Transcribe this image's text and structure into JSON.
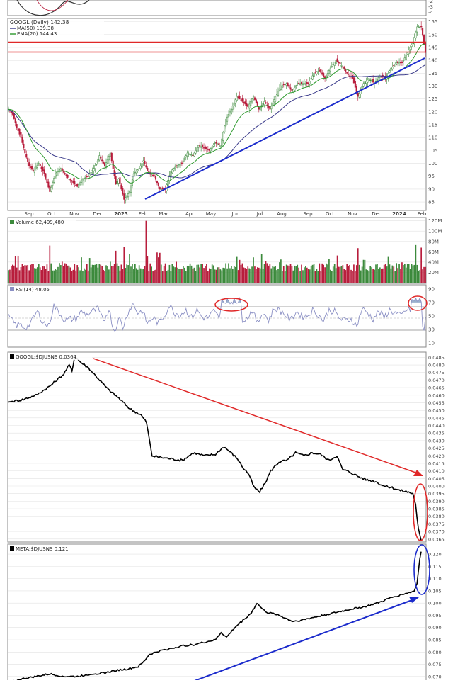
{
  "colors": {
    "up": "#3c8a3c",
    "down": "#b81d3c",
    "ma50": "#3a3a8a",
    "ema20": "#2e9a2e",
    "resistance": "#e02828",
    "trend_blue": "#1c2ccc",
    "grid": "#e2e2e2",
    "rsi_line": "#8a8fc4",
    "ratio_line": "#000000"
  },
  "chart_data": [
    {
      "type": "candlestick",
      "title": "GOOGL (Daily) 142.38",
      "legend": [
        {
          "name": "MA(50) 139.38"
        },
        {
          "name": "EMA(20) 144.43"
        }
      ],
      "yticks": [
        "155",
        "150",
        "145",
        "140",
        "135",
        "130",
        "125",
        "120",
        "115",
        "110",
        "105",
        "100",
        "95",
        "90",
        "85"
      ],
      "ylim": [
        82,
        156
      ],
      "xticks": [
        "Sep",
        "Oct",
        "Nov",
        "Dec",
        "2023",
        "Feb",
        "Mar",
        "Apr",
        "May",
        "Jun",
        "Jul",
        "Aug",
        "Sep",
        "Oct",
        "Nov",
        "Dec",
        "2024",
        "Feb"
      ],
      "top_strip_ticks": [
        "-2",
        "-3",
        "-4"
      ],
      "price_anchors": [
        [
          0,
          121
        ],
        [
          3,
          119
        ],
        [
          6,
          114
        ],
        [
          9,
          110
        ],
        [
          12,
          104
        ],
        [
          15,
          99
        ],
        [
          18,
          97
        ],
        [
          22,
          100
        ],
        [
          26,
          96
        ],
        [
          30,
          89
        ],
        [
          34,
          96
        ],
        [
          38,
          98
        ],
        [
          42,
          95
        ],
        [
          46,
          93
        ],
        [
          50,
          91
        ],
        [
          54,
          94
        ],
        [
          58,
          95
        ],
        [
          62,
          98
        ],
        [
          66,
          103
        ],
        [
          70,
          99
        ],
        [
          74,
          104
        ],
        [
          78,
          92
        ],
        [
          80,
          94
        ],
        [
          84,
          86
        ],
        [
          88,
          89
        ],
        [
          91,
          96
        ],
        [
          95,
          98
        ],
        [
          98,
          101
        ],
        [
          102,
          96
        ],
        [
          106,
          95
        ],
        [
          110,
          90
        ],
        [
          114,
          90
        ],
        [
          118,
          97
        ],
        [
          122,
          99
        ],
        [
          126,
          100
        ],
        [
          130,
          104
        ],
        [
          134,
          103
        ],
        [
          138,
          107
        ],
        [
          142,
          106
        ],
        [
          146,
          105
        ],
        [
          150,
          108
        ],
        [
          154,
          107
        ],
        [
          158,
          117
        ],
        [
          162,
          121
        ],
        [
          166,
          126
        ],
        [
          170,
          124
        ],
        [
          174,
          122
        ],
        [
          178,
          126
        ],
        [
          182,
          121
        ],
        [
          186,
          124
        ],
        [
          190,
          121
        ],
        [
          194,
          126
        ],
        [
          198,
          130
        ],
        [
          202,
          131
        ],
        [
          206,
          128
        ],
        [
          210,
          131
        ],
        [
          214,
          131
        ],
        [
          218,
          131
        ],
        [
          222,
          135
        ],
        [
          226,
          136
        ],
        [
          230,
          133
        ],
        [
          234,
          137
        ],
        [
          238,
          140
        ],
        [
          242,
          138
        ],
        [
          246,
          135
        ],
        [
          250,
          133
        ],
        [
          254,
          126
        ],
        [
          258,
          131
        ],
        [
          262,
          133
        ],
        [
          266,
          131
        ],
        [
          270,
          134
        ],
        [
          274,
          133
        ],
        [
          278,
          137
        ],
        [
          282,
          139
        ],
        [
          286,
          139
        ],
        [
          290,
          143
        ],
        [
          294,
          147
        ],
        [
          297,
          153
        ],
        [
          300,
          153
        ],
        [
          303,
          143
        ]
      ],
      "volume_panel": {
        "title": "Volume 62,499,480",
        "yticks": [
          "120M",
          "100M",
          "80M",
          "60M",
          "40M",
          "20M"
        ],
        "ylim": [
          0,
          125
        ]
      },
      "rsi_panel": {
        "title": "RSI(14) 48.05",
        "yticks": [
          "90",
          "70",
          "50",
          "30",
          "10"
        ],
        "ylim": [
          5,
          95
        ]
      }
    },
    {
      "type": "line",
      "title": "GOOGL:$DJUSNS 0.0364",
      "yticks": [
        "0.0485",
        "0.0480",
        "0.0475",
        "0.0470",
        "0.0465",
        "0.0460",
        "0.0455",
        "0.0450",
        "0.0445",
        "0.0440",
        "0.0435",
        "0.0430",
        "0.0425",
        "0.0420",
        "0.0415",
        "0.0410",
        "0.0405",
        "0.0400",
        "0.0395",
        "0.0390",
        "0.0385",
        "0.0380",
        "0.0375",
        "0.0370",
        "0.0365"
      ],
      "ylim": [
        0.03635,
        0.04875
      ],
      "points": [
        [
          0,
          0.04555
        ],
        [
          10,
          0.0457
        ],
        [
          20,
          0.046
        ],
        [
          30,
          0.0466
        ],
        [
          40,
          0.0474
        ],
        [
          44,
          0.048
        ],
        [
          46,
          0.0476
        ],
        [
          48,
          0.0486
        ],
        [
          52,
          0.0482
        ],
        [
          58,
          0.0478
        ],
        [
          64,
          0.0472
        ],
        [
          72,
          0.0464
        ],
        [
          80,
          0.0458
        ],
        [
          88,
          0.0451
        ],
        [
          96,
          0.0447
        ],
        [
          100,
          0.0442
        ],
        [
          104,
          0.042
        ],
        [
          110,
          0.0419
        ],
        [
          118,
          0.0418
        ],
        [
          126,
          0.0417
        ],
        [
          134,
          0.0422
        ],
        [
          142,
          0.042
        ],
        [
          150,
          0.0421
        ],
        [
          156,
          0.0426
        ],
        [
          160,
          0.0423
        ],
        [
          166,
          0.0418
        ],
        [
          170,
          0.0412
        ],
        [
          174,
          0.0408
        ],
        [
          178,
          0.0399
        ],
        [
          182,
          0.0396
        ],
        [
          186,
          0.0402
        ],
        [
          190,
          0.041
        ],
        [
          196,
          0.0416
        ],
        [
          202,
          0.0417
        ],
        [
          208,
          0.0422
        ],
        [
          214,
          0.042
        ],
        [
          220,
          0.0422
        ],
        [
          226,
          0.0421
        ],
        [
          232,
          0.0417
        ],
        [
          238,
          0.042
        ],
        [
          242,
          0.0411
        ],
        [
          248,
          0.0409
        ],
        [
          254,
          0.0406
        ],
        [
          260,
          0.0404
        ],
        [
          266,
          0.0403
        ],
        [
          272,
          0.04
        ],
        [
          278,
          0.0399
        ],
        [
          284,
          0.0397
        ],
        [
          290,
          0.0396
        ],
        [
          293,
          0.0395
        ],
        [
          295,
          0.0388
        ],
        [
          296,
          0.0379
        ],
        [
          297,
          0.0372
        ],
        [
          299,
          0.0364
        ]
      ]
    },
    {
      "type": "line",
      "title": "META:$DJUSNS 0.121",
      "yticks": [
        "0.120",
        "0.115",
        "0.110",
        "0.105",
        "0.100",
        "0.095",
        "0.090",
        "0.085",
        "0.080",
        "0.075",
        "0.070"
      ],
      "ylim": [
        0.0685,
        0.1235
      ],
      "points": [
        [
          0,
          0.0675
        ],
        [
          10,
          0.069
        ],
        [
          20,
          0.07
        ],
        [
          30,
          0.071
        ],
        [
          40,
          0.07
        ],
        [
          50,
          0.07
        ],
        [
          60,
          0.071
        ],
        [
          70,
          0.0715
        ],
        [
          78,
          0.0725
        ],
        [
          86,
          0.073
        ],
        [
          94,
          0.074
        ],
        [
          98,
          0.076
        ],
        [
          102,
          0.079
        ],
        [
          110,
          0.0805
        ],
        [
          118,
          0.0815
        ],
        [
          126,
          0.0825
        ],
        [
          134,
          0.083
        ],
        [
          142,
          0.084
        ],
        [
          150,
          0.085
        ],
        [
          154,
          0.088
        ],
        [
          158,
          0.086
        ],
        [
          164,
          0.09
        ],
        [
          170,
          0.093
        ],
        [
          176,
          0.096
        ],
        [
          180,
          0.1
        ],
        [
          184,
          0.0975
        ],
        [
          188,
          0.096
        ],
        [
          194,
          0.0955
        ],
        [
          200,
          0.094
        ],
        [
          206,
          0.0925
        ],
        [
          212,
          0.093
        ],
        [
          220,
          0.094
        ],
        [
          228,
          0.095
        ],
        [
          236,
          0.096
        ],
        [
          244,
          0.097
        ],
        [
          252,
          0.098
        ],
        [
          258,
          0.0985
        ],
        [
          264,
          0.0995
        ],
        [
          270,
          0.1005
        ],
        [
          276,
          0.102
        ],
        [
          282,
          0.103
        ],
        [
          288,
          0.104
        ],
        [
          292,
          0.1045
        ],
        [
          294,
          0.105
        ],
        [
          296,
          0.108
        ],
        [
          297,
          0.113
        ],
        [
          298,
          0.118
        ],
        [
          299,
          0.121
        ]
      ]
    }
  ]
}
